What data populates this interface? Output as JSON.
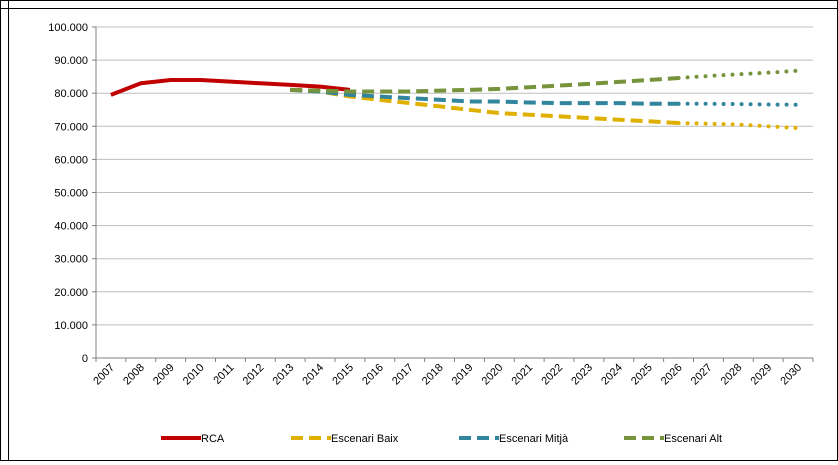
{
  "chart_data": {
    "type": "line",
    "title": "",
    "xlabel": "",
    "ylabel": "",
    "ylim": [
      0,
      100000
    ],
    "y_ticks": [
      "0",
      "10.000",
      "20.000",
      "30.000",
      "40.000",
      "50.000",
      "60.000",
      "70.000",
      "80.000",
      "90.000",
      "100.000"
    ],
    "categories": [
      "2007",
      "2008",
      "2009",
      "2010",
      "2011",
      "2012",
      "2013",
      "2014",
      "2015",
      "2016",
      "2017",
      "2018",
      "2019",
      "2020",
      "2021",
      "2022",
      "2023",
      "2024",
      "2025",
      "2026",
      "2027",
      "2028",
      "2029",
      "2030"
    ],
    "grid": "horizontal",
    "legend_position": "bottom",
    "series": [
      {
        "name": "RCA",
        "color": "#c00000",
        "style": "solid",
        "values": [
          79500,
          83000,
          84000,
          84000,
          83500,
          83000,
          82500,
          82000,
          81000,
          null,
          null,
          null,
          null,
          null,
          null,
          null,
          null,
          null,
          null,
          null,
          null,
          null,
          null,
          null
        ]
      },
      {
        "name": "Escenari Baix",
        "color": "#e0b000",
        "style": "dashed",
        "dotted_from_index": 19,
        "values": [
          null,
          null,
          null,
          null,
          null,
          null,
          81000,
          80500,
          79000,
          78000,
          77000,
          76000,
          75000,
          74000,
          73500,
          73000,
          72500,
          72000,
          71500,
          71000,
          70800,
          70500,
          70000,
          69500
        ]
      },
      {
        "name": "Escenari Mitjà",
        "color": "#31859c",
        "style": "dashed",
        "dotted_from_index": 19,
        "values": [
          null,
          null,
          null,
          null,
          null,
          null,
          81000,
          80500,
          79500,
          79000,
          78500,
          78000,
          77500,
          77500,
          77200,
          77000,
          77000,
          77000,
          76800,
          76800,
          76800,
          76700,
          76600,
          76500
        ]
      },
      {
        "name": "Escenari Alt",
        "color": "#77933c",
        "style": "dashed",
        "dotted_from_index": 19,
        "values": [
          null,
          null,
          null,
          null,
          null,
          null,
          81000,
          80800,
          80500,
          80500,
          80500,
          80800,
          81000,
          81300,
          81800,
          82300,
          82800,
          83400,
          84000,
          84600,
          85200,
          85700,
          86200,
          86800
        ]
      }
    ]
  }
}
